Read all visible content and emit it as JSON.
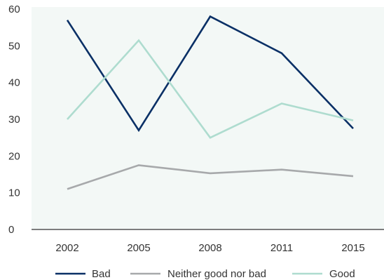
{
  "chart_data": {
    "type": "line",
    "title": "",
    "xlabel": "",
    "ylabel": "",
    "categories": [
      "2002",
      "2005",
      "2008",
      "2011",
      "2015"
    ],
    "ylim": [
      0,
      60
    ],
    "yticks": [
      0,
      10,
      20,
      30,
      40,
      50,
      60
    ],
    "grid": false,
    "plot_background": "#f3f8f6",
    "legend_position": "bottom",
    "series": [
      {
        "name": "Bad",
        "color": "#0a3066",
        "values": [
          57,
          27,
          58,
          48,
          27.5
        ]
      },
      {
        "name": "Neither good nor bad",
        "color": "#a7a9ab",
        "values": [
          11,
          17.5,
          15.3,
          16.3,
          14.5
        ]
      },
      {
        "name": "Good",
        "color": "#aedccf",
        "values": [
          30,
          51.5,
          25,
          34.3,
          29.7
        ]
      }
    ]
  }
}
